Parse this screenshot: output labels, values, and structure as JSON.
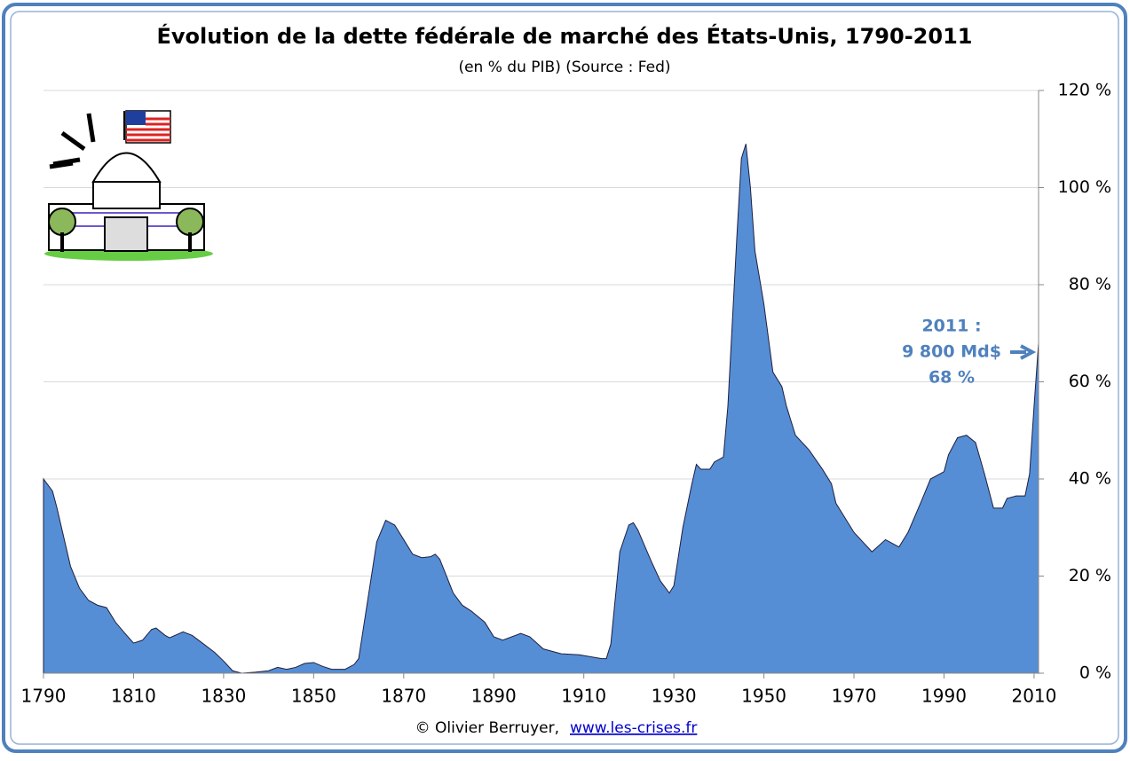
{
  "chart_data": {
    "type": "area",
    "title": "Évolution de la dette fédérale de marché des États-Unis, 1790-2011",
    "subtitle": "(en % du PIB) (Source : Fed)",
    "x": [
      1790,
      1792,
      1793,
      1795,
      1796,
      1798,
      1800,
      1802,
      1804,
      1806,
      1808,
      1810,
      1812,
      1814,
      1815,
      1817,
      1818,
      1821,
      1823,
      1825,
      1828,
      1830,
      1832,
      1834,
      1837,
      1840,
      1842,
      1844,
      1846,
      1848,
      1850,
      1852,
      1854,
      1857,
      1859,
      1860,
      1861,
      1863,
      1864,
      1866,
      1868,
      1870,
      1872,
      1874,
      1876,
      1877,
      1878,
      1881,
      1883,
      1885,
      1888,
      1890,
      1892,
      1896,
      1898,
      1901,
      1905,
      1909,
      1914,
      1915,
      1916,
      1918,
      1920,
      1921,
      1922,
      1925,
      1927,
      1929,
      1930,
      1932,
      1934,
      1935,
      1936,
      1938,
      1939,
      1941,
      1942,
      1944,
      1945,
      1946,
      1947,
      1948,
      1950,
      1952,
      1954,
      1955,
      1957,
      1960,
      1963,
      1965,
      1966,
      1970,
      1972,
      1974,
      1977,
      1980,
      1982,
      1985,
      1987,
      1990,
      1991,
      1993,
      1995,
      1997,
      1999,
      2001,
      2003,
      2004,
      2006,
      2008,
      2009,
      2010,
      2011
    ],
    "values": [
      40,
      37.5,
      34,
      26,
      22,
      17.5,
      15,
      14,
      13.5,
      10.5,
      8.3,
      6.2,
      6.8,
      9,
      9.3,
      7.8,
      7.3,
      8.5,
      7.8,
      6.4,
      4.3,
      2.5,
      0.5,
      0,
      0.2,
      0.5,
      1.2,
      0.8,
      1.2,
      2,
      2.2,
      1.4,
      0.8,
      0.8,
      1.8,
      3,
      9,
      21,
      27,
      31.5,
      30.5,
      27.5,
      24.5,
      23.8,
      24,
      24.5,
      23.5,
      16.5,
      14,
      12.8,
      10.5,
      7.5,
      6.8,
      8.2,
      7.5,
      5,
      4,
      3.8,
      3,
      3,
      6,
      25,
      30.5,
      31,
      29.5,
      23,
      19,
      16.5,
      18,
      30,
      39,
      43,
      42,
      42,
      43.5,
      44.5,
      55,
      90,
      106,
      109,
      100,
      87,
      76,
      62,
      59,
      55,
      49,
      46,
      42,
      39,
      35,
      29,
      27,
      25,
      27.5,
      26,
      29,
      35.5,
      40,
      41.5,
      45,
      48.5,
      49,
      47.5,
      41,
      34,
      34,
      36,
      36.5,
      36.5,
      41,
      55,
      68
    ],
    "color": "#558ed5",
    "xlim": [
      1790,
      2011
    ],
    "xticks": [
      1790,
      1810,
      1830,
      1850,
      1870,
      1890,
      1910,
      1930,
      1950,
      1970,
      1990,
      2010
    ],
    "ylim": [
      0,
      120
    ],
    "yticks": [
      {
        "value": 0,
        "label": "0 %"
      },
      {
        "value": 20,
        "label": "20 %"
      },
      {
        "value": 40,
        "label": "40 %"
      },
      {
        "value": 60,
        "label": "60 %"
      },
      {
        "value": 80,
        "label": "80 %"
      },
      {
        "value": 100,
        "label": "100 %"
      },
      {
        "value": 120,
        "label": "120 %"
      }
    ],
    "grid": true,
    "annotation": [
      "2011 :",
      "9 800 Md$",
      "68 %"
    ],
    "credit": "© Olivier Berruyer,",
    "link": "www.les-crises.fr"
  }
}
